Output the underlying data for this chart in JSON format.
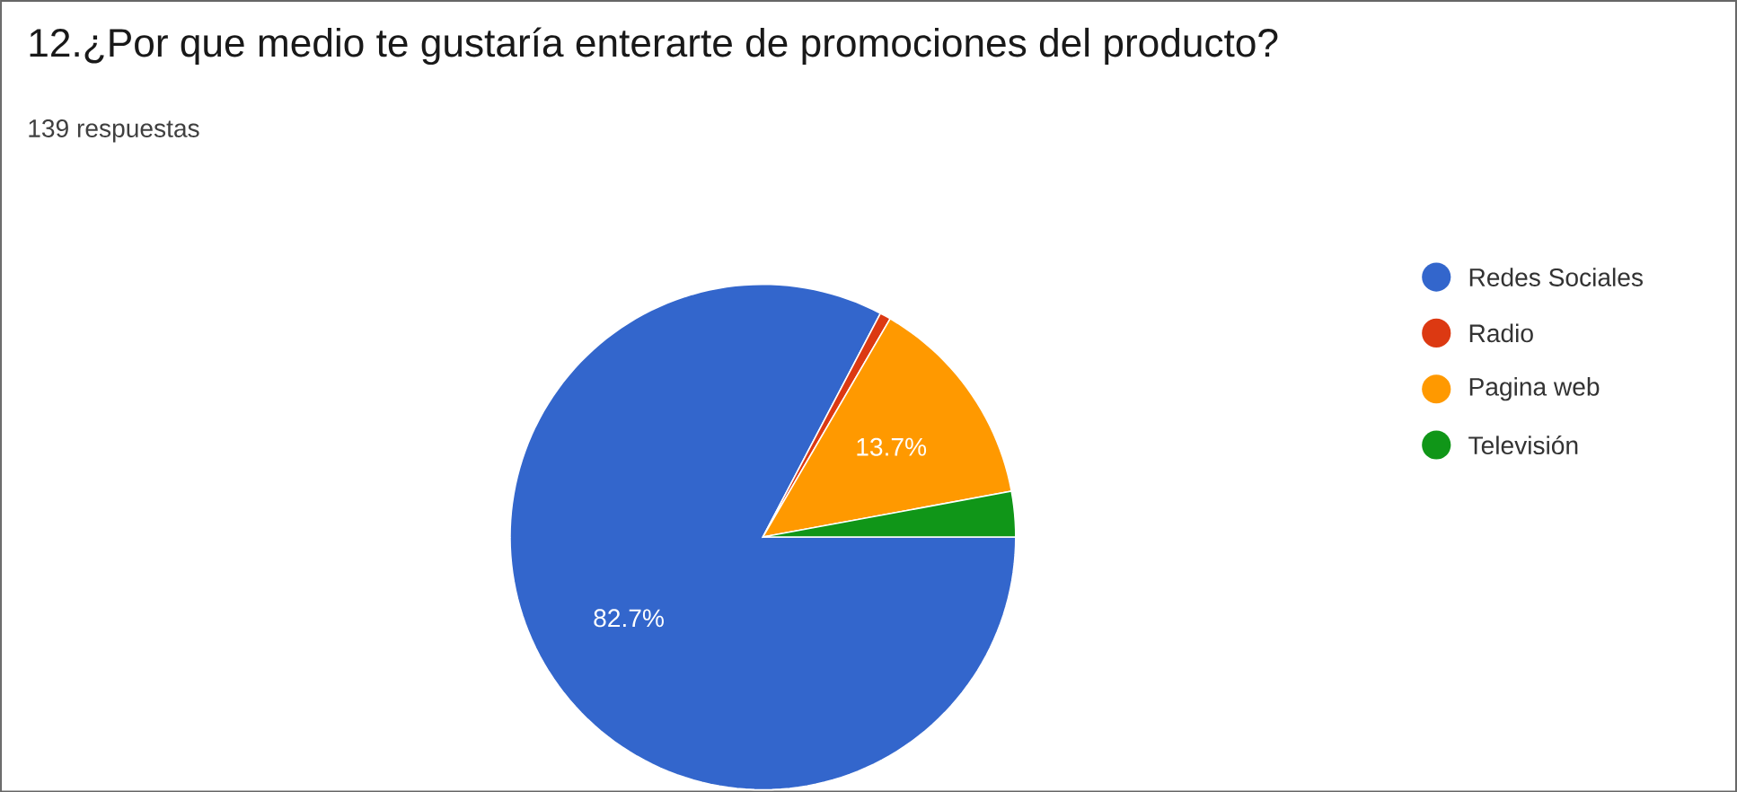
{
  "chart_data": {
    "type": "pie",
    "title": "12.¿Por que medio te gustaría enterarte de promociones del producto?",
    "subtitle": "139 respuestas",
    "categories": [
      "Redes Sociales",
      "Radio",
      "Pagina web",
      "Televisión"
    ],
    "values": [
      82.7,
      0.7,
      13.7,
      2.9
    ],
    "colors": [
      "#3366cc",
      "#dc3912",
      "#ff9900",
      "#109618"
    ],
    "value_labels": [
      "82.7%",
      null,
      "13.7%",
      null
    ],
    "legend": "right"
  }
}
